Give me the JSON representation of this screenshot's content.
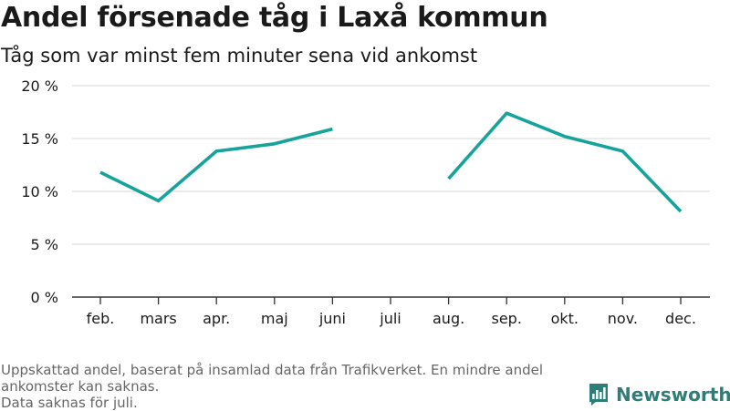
{
  "title": "Andel försenade tåg i Laxå kommun",
  "subtitle": "Tåg som var minst fem minuter sena vid ankomst",
  "footer": {
    "line1": "Uppskattad andel, baserat på insamlad data från Trafikverket. En mindre andel",
    "line2": "ankomster kan saknas.",
    "line3": "Data saknas för juli."
  },
  "brand": {
    "name": "Newsworthy",
    "icon": "bar-chart-logo-icon"
  },
  "colors": {
    "line": "#16a39a",
    "grid": "#dddddd",
    "axis": "#333333",
    "brand": "#2f7d78"
  },
  "chart_data": {
    "type": "line",
    "categories": [
      "feb.",
      "mars",
      "apr.",
      "maj",
      "juni",
      "juli",
      "aug.",
      "sep.",
      "okt.",
      "nov.",
      "dec."
    ],
    "series": [
      {
        "values": [
          11.8,
          9.1,
          13.8,
          14.5,
          15.9,
          null,
          11.2,
          17.4,
          15.2,
          13.8,
          8.1
        ]
      }
    ],
    "ylim": [
      0,
      20
    ],
    "yticks": [
      0,
      5,
      10,
      15,
      20
    ],
    "ytick_labels": [
      "0 %",
      "5 %",
      "10 %",
      "15 %",
      "20 %"
    ],
    "grid": true
  }
}
